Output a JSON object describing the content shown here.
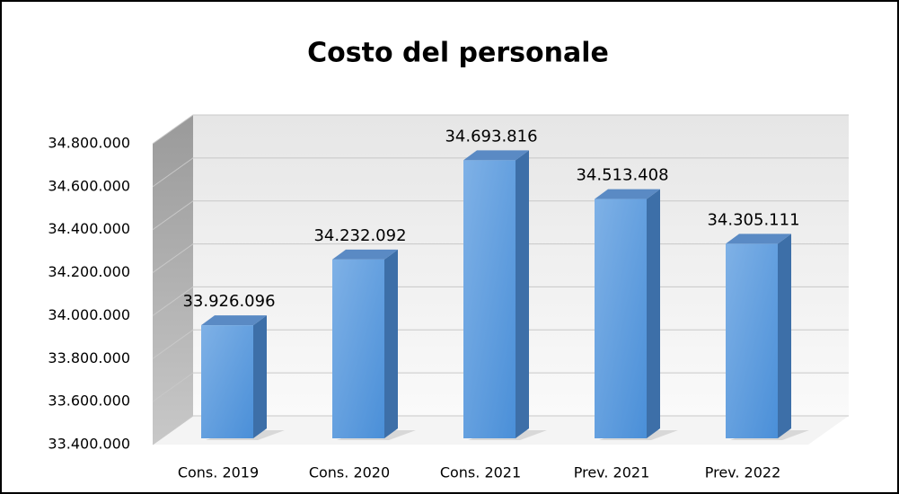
{
  "chart_data": {
    "type": "bar3d",
    "title": "Costo del personale",
    "categories": [
      "Cons. 2019",
      "Cons. 2020",
      "Cons. 2021",
      "Prev. 2021",
      "Prev. 2022"
    ],
    "values": [
      33926096,
      34232092,
      34693816,
      34513408,
      34305111
    ],
    "value_labels": [
      "33.926.096",
      "34.232.092",
      "34.693.816",
      "34.513.408",
      "34.305.111"
    ],
    "color": "#5b9bd5",
    "ylim": [
      33400000,
      34800000
    ],
    "yticks": [
      {
        "value": 33400000,
        "label": "33.400.000"
      },
      {
        "value": 33600000,
        "label": "33.600.000"
      },
      {
        "value": 33800000,
        "label": "33.800.000"
      },
      {
        "value": 34000000,
        "label": "34.000.000"
      },
      {
        "value": 34200000,
        "label": "34.200.000"
      },
      {
        "value": 34400000,
        "label": "34.400.000"
      },
      {
        "value": 34600000,
        "label": "34.600.000"
      },
      {
        "value": 34800000,
        "label": "34.800.000"
      }
    ],
    "grid": true
  }
}
